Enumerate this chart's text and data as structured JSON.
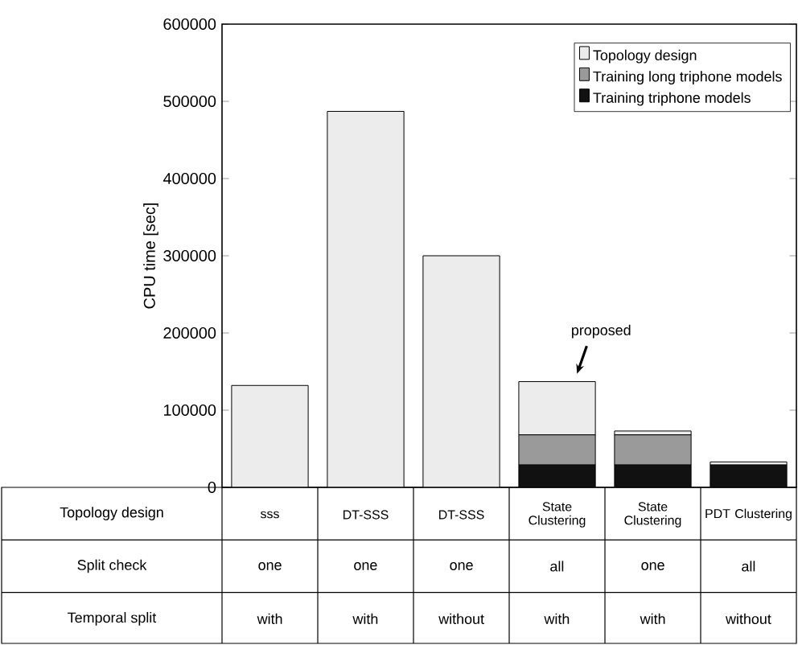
{
  "chart_data": {
    "type": "bar",
    "stacked": true,
    "ylabel": "CPU time [sec]",
    "categories": [
      "sss",
      "DT-SSS",
      "DT-SSS",
      "State Clustering",
      "State Clustering",
      "PDT Clustering"
    ],
    "series": [
      {
        "name": "Training triphone models",
        "color": "#111111",
        "values": [
          0,
          0,
          0,
          29000,
          29000,
          29000
        ]
      },
      {
        "name": "Training long triphone models",
        "color": "#9a9a9a",
        "values": [
          0,
          0,
          0,
          39000,
          39000,
          0
        ]
      },
      {
        "name": "Topology design",
        "color": "#ececec",
        "values": [
          132000,
          487000,
          300000,
          69000,
          5000,
          4000
        ]
      }
    ],
    "ylim": [
      0,
      600000
    ],
    "yticks": [
      0,
      100000,
      200000,
      300000,
      400000,
      500000,
      600000
    ],
    "legend": "top right",
    "annotations": [
      "proposed",
      "Topology design",
      "Split check",
      "Temporal split",
      "one",
      "one",
      "one",
      "all",
      "one",
      "all",
      "with",
      "with",
      "without",
      "with",
      "with",
      "without"
    ]
  }
}
